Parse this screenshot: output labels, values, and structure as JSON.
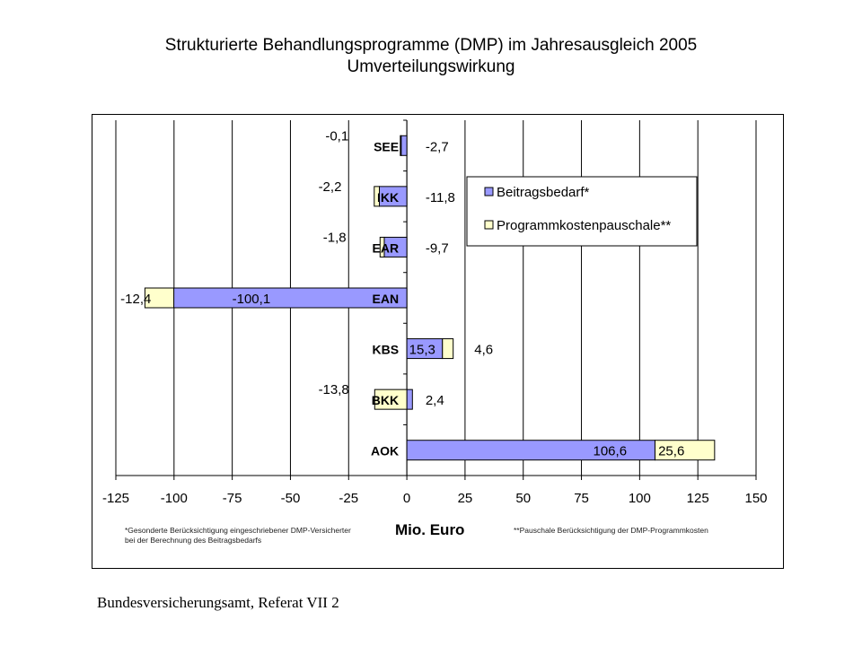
{
  "title_line1": "Strukturierte Behandlungsprogramme (DMP) im Jahresausgleich 2005",
  "title_line2": "Umverteilungswirkung",
  "footer": "Bundesversicherungsamt, Referat VII 2",
  "note_left": "*Gesonderte Berücksichtigung eingeschriebener DMP-Versicherter bei der Berechnung des Beitragsbedarfs",
  "note_right": "**Pauschale Berücksichtigung der DMP-Programmkosten",
  "chart_data": {
    "type": "bar",
    "orientation": "horizontal",
    "stacked": true,
    "categories": [
      "SEE",
      "IKK",
      "EAR",
      "EAN",
      "KBS",
      "BKK",
      "AOK"
    ],
    "series": [
      {
        "name": "Beitragsbedarf*",
        "color": "#9999ff",
        "values": [
          -2.7,
          -11.8,
          -9.7,
          -100.1,
          15.3,
          2.4,
          106.6
        ],
        "labels": [
          "-2,7",
          "-11,8",
          "-9,7",
          "-100,1",
          "15,3",
          "2,4",
          "106,6"
        ]
      },
      {
        "name": "Programmkostenpauschale**",
        "color": "#ffffcc",
        "values": [
          -0.1,
          -2.2,
          -1.8,
          -12.4,
          4.6,
          -13.8,
          25.6
        ],
        "labels": [
          "-0,1",
          "-2,2",
          "-1,8",
          "-12,4",
          "4,6",
          "-13,8",
          "25,6"
        ]
      }
    ],
    "xlim": [
      -125,
      150
    ],
    "xticks": [
      -125,
      -100,
      -75,
      -50,
      -25,
      0,
      25,
      50,
      75,
      100,
      125,
      150
    ],
    "xlabel": "Mio. Euro",
    "grid": "vertical",
    "legend": "top-right"
  }
}
